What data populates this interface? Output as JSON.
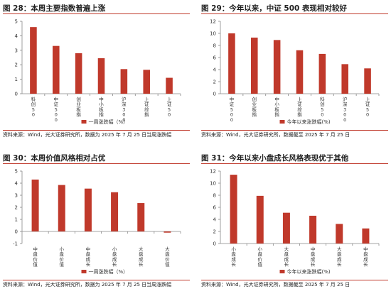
{
  "accent_color": "#c0392b",
  "panels": [
    {
      "title": "图 28：本周主要指数普遍上涨",
      "source": "资料来源：Wind，光大证券研究所，数据为 2025 年 7 月 25 日当周涨跌幅"
    },
    {
      "title": "图 29：今年以来，中证 500 表现相对较好",
      "source": "资料来源：Wind，光大证券研究所，数据截至 2025 年 7 月 25 日"
    },
    {
      "title": "图 30：本周价值风格相对占优",
      "source": "资料来源：Wind，光大证券研究所，数据为 2025 年 7 月 25 日当周涨跌幅"
    },
    {
      "title": "图 31：今年以来小盘成长风格表现优于其他",
      "source": "资料来源：Wind，光大证券研究所，数据截至 2025 年 7 月 25 日"
    }
  ],
  "chart_data": [
    {
      "type": "bar",
      "categories": [
        "科创50",
        "中证500",
        "创业板指",
        "中小板指",
        "沪深300",
        "上证综指",
        "上证50"
      ],
      "series": [
        {
          "name": "一周涨跌幅（%）",
          "values": [
            4.6,
            3.3,
            2.8,
            2.45,
            1.7,
            1.65,
            1.1
          ]
        }
      ],
      "ylim": [
        0,
        5
      ],
      "yticks": [
        0,
        1,
        2,
        3,
        4,
        5
      ],
      "legend": "bottom-center"
    },
    {
      "type": "bar",
      "categories": [
        "中证500",
        "创业板指",
        "中小板指",
        "上证综指",
        "科创50",
        "沪深300",
        "上证50"
      ],
      "series": [
        {
          "name": "今年以来涨跌幅(%)",
          "values": [
            10.0,
            9.3,
            8.9,
            7.2,
            6.6,
            4.9,
            4.2
          ]
        }
      ],
      "ylim": [
        0,
        12
      ],
      "yticks": [
        0,
        2,
        4,
        6,
        8,
        10,
        12
      ],
      "legend": "bottom-center"
    },
    {
      "type": "bar",
      "categories": [
        "中盘价值",
        "小盘价值",
        "中盘成长",
        "小盘成长",
        "大盘成长",
        "大盘价值"
      ],
      "series": [
        {
          "name": "一周涨跌幅（%）",
          "values": [
            4.3,
            3.85,
            3.55,
            3.25,
            2.35,
            -0.1
          ]
        }
      ],
      "ylim": [
        -1,
        5
      ],
      "yticks": [
        -1,
        0,
        1,
        2,
        3,
        4,
        5
      ],
      "legend": "bottom-center"
    },
    {
      "type": "bar",
      "categories": [
        "小盘成长",
        "小盘价值",
        "大盘成长",
        "中盘成长",
        "大盘成长",
        "中盘成长"
      ],
      "series": [
        {
          "name": "今年以来涨跌幅(%)",
          "values": [
            11.4,
            7.9,
            5.1,
            4.6,
            3.25,
            2.5
          ]
        }
      ],
      "ylim": [
        0,
        12
      ],
      "yticks": [
        0,
        2,
        4,
        6,
        8,
        10,
        12
      ],
      "legend": "bottom-center"
    }
  ]
}
